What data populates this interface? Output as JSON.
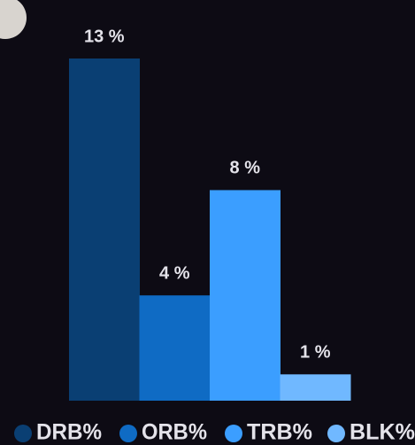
{
  "chart_data": {
    "type": "bar",
    "categories": [
      "DRB%",
      "ORB%",
      "TRB%",
      "BLK%"
    ],
    "values": [
      13,
      4,
      8,
      1
    ],
    "value_labels": [
      "13 %",
      "4 %",
      "8 %",
      "1 %"
    ],
    "colors": [
      "#0a3f73",
      "#0f6bc4",
      "#3b9eff",
      "#70b8ff"
    ]
  }
}
